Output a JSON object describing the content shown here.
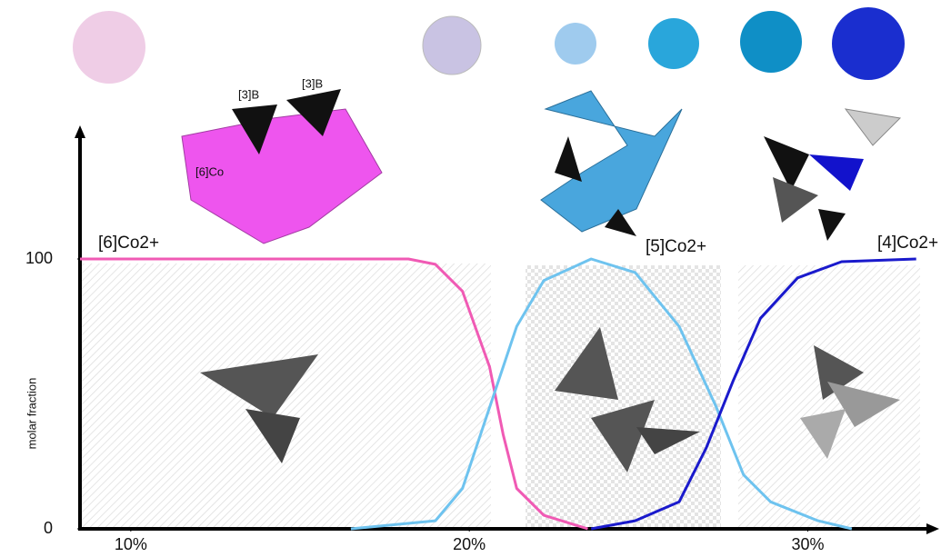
{
  "chart_data": {
    "type": "line",
    "ylabel": "molar fraction",
    "xlim": [
      8.5,
      33.8
    ],
    "ylim": [
      0,
      100
    ],
    "xticks": [
      {
        "value": 10,
        "label": "10%"
      },
      {
        "value": 20,
        "label": "20%"
      },
      {
        "value": 30,
        "label": "30%"
      }
    ],
    "yticks": [
      0,
      100
    ],
    "annotations": [
      "[3]B",
      "[3]B",
      "[6]Co"
    ],
    "series": [
      {
        "name": "[6]Co2+",
        "color": "#f05ab4",
        "x": [
          8.5,
          11.5,
          14.2,
          18.2,
          19.0,
          19.8,
          20.6,
          21.0,
          21.4,
          22.2,
          23.5
        ],
        "values": [
          100,
          100,
          100,
          100,
          98,
          88,
          60,
          35,
          15,
          5,
          0
        ]
      },
      {
        "name": "[5]Co2+",
        "color": "#6ec3ef",
        "x": [
          16.5,
          19.0,
          19.8,
          20.6,
          21.4,
          22.2,
          23.6,
          24.9,
          26.2,
          27.3,
          28.1,
          28.9,
          30.3,
          31.3
        ],
        "values": [
          0,
          3,
          15,
          45,
          75,
          92,
          100,
          95,
          75,
          45,
          20,
          10,
          3,
          0
        ]
      },
      {
        "name": "[4]Co2+",
        "color": "#1a1acc",
        "x": [
          23.6,
          24.9,
          26.2,
          27.0,
          27.8,
          28.6,
          29.7,
          31.0,
          33.2
        ],
        "values": [
          0,
          3,
          10,
          30,
          55,
          78,
          93,
          99,
          100
        ]
      }
    ]
  }
}
